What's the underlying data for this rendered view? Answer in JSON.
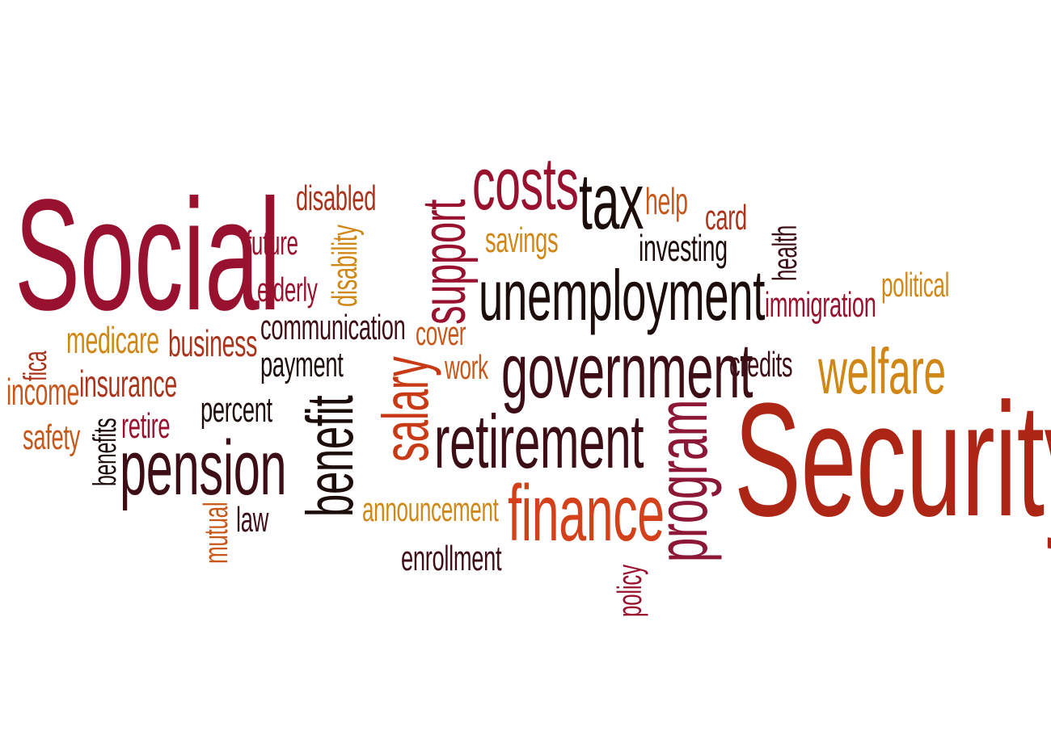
{
  "palette": {
    "crimson": "#98122f",
    "dark_maroon": "#2d0a10",
    "deep_red": "#6d0f22",
    "red_orange": "#c73a15",
    "orange": "#c8581a",
    "amber": "#d08716",
    "rust": "#a9341b",
    "brick": "#9f1f24",
    "brown": "#7a1a12",
    "black": "#1c0c0a"
  },
  "words": [
    {
      "id": "social",
      "text": "Social",
      "color": "#98122f"
    },
    {
      "id": "security",
      "text": "Security",
      "color": "#ad2515"
    },
    {
      "id": "unemployment",
      "text": "unemployment",
      "color": "#1c0c0a"
    },
    {
      "id": "government",
      "text": "government",
      "color": "#3d0e15"
    },
    {
      "id": "retirement",
      "text": "retirement",
      "color": "#3d0e15"
    },
    {
      "id": "pension",
      "text": "pension",
      "color": "#3d0e15"
    },
    {
      "id": "costs",
      "text": "costs",
      "color": "#98122f"
    },
    {
      "id": "tax",
      "text": "tax",
      "color": "#1c0c0a"
    },
    {
      "id": "support",
      "text": "support",
      "color": "#98122f"
    },
    {
      "id": "salary",
      "text": "salary",
      "color": "#c73a15"
    },
    {
      "id": "benefit",
      "text": "benefit",
      "color": "#1c0c0a"
    },
    {
      "id": "program",
      "text": "program",
      "color": "#8c1736"
    },
    {
      "id": "finance",
      "text": "finance",
      "color": "#d44019"
    },
    {
      "id": "welfare",
      "text": "welfare",
      "color": "#d08716"
    },
    {
      "id": "disabled",
      "text": "disabled",
      "color": "#a9341b"
    },
    {
      "id": "future",
      "text": "future",
      "color": "#98122f"
    },
    {
      "id": "disability",
      "text": "disability",
      "color": "#d08716"
    },
    {
      "id": "elderly",
      "text": "elderly",
      "color": "#98122f"
    },
    {
      "id": "communication",
      "text": "communication",
      "color": "#3d0e15"
    },
    {
      "id": "payment",
      "text": "payment",
      "color": "#1c0c0a"
    },
    {
      "id": "cover",
      "text": "cover",
      "color": "#c8581a"
    },
    {
      "id": "work",
      "text": "work",
      "color": "#c8581a"
    },
    {
      "id": "savings",
      "text": "savings",
      "color": "#d08716"
    },
    {
      "id": "help",
      "text": "help",
      "color": "#c8581a"
    },
    {
      "id": "card",
      "text": "card",
      "color": "#a9341b"
    },
    {
      "id": "investing",
      "text": "investing",
      "color": "#1c0c0a"
    },
    {
      "id": "health",
      "text": "health",
      "color": "#3d0e15"
    },
    {
      "id": "political",
      "text": "political",
      "color": "#d08716"
    },
    {
      "id": "immigration",
      "text": "immigration",
      "color": "#98122f"
    },
    {
      "id": "credits",
      "text": "credits",
      "color": "#3d0e15"
    },
    {
      "id": "medicare",
      "text": "medicare",
      "color": "#d08716"
    },
    {
      "id": "business",
      "text": "business",
      "color": "#a9341b"
    },
    {
      "id": "fica",
      "text": "fica",
      "color": "#a9341b"
    },
    {
      "id": "income",
      "text": "income",
      "color": "#c8581a"
    },
    {
      "id": "insurance",
      "text": "insurance",
      "color": "#a9341b"
    },
    {
      "id": "safety",
      "text": "safety",
      "color": "#c8581a"
    },
    {
      "id": "benefits",
      "text": "benefits",
      "color": "#1c0c0a"
    },
    {
      "id": "retire",
      "text": "retire",
      "color": "#98122f"
    },
    {
      "id": "percent",
      "text": "percent",
      "color": "#1c0c0a"
    },
    {
      "id": "mutual",
      "text": "mutual",
      "color": "#c8581a"
    },
    {
      "id": "law",
      "text": "law",
      "color": "#3d0e15"
    },
    {
      "id": "announcement",
      "text": "announcement",
      "color": "#d08716"
    },
    {
      "id": "enrollment",
      "text": "enrollment",
      "color": "#3d0e15"
    },
    {
      "id": "policy",
      "text": "policy",
      "color": "#98122f"
    }
  ]
}
